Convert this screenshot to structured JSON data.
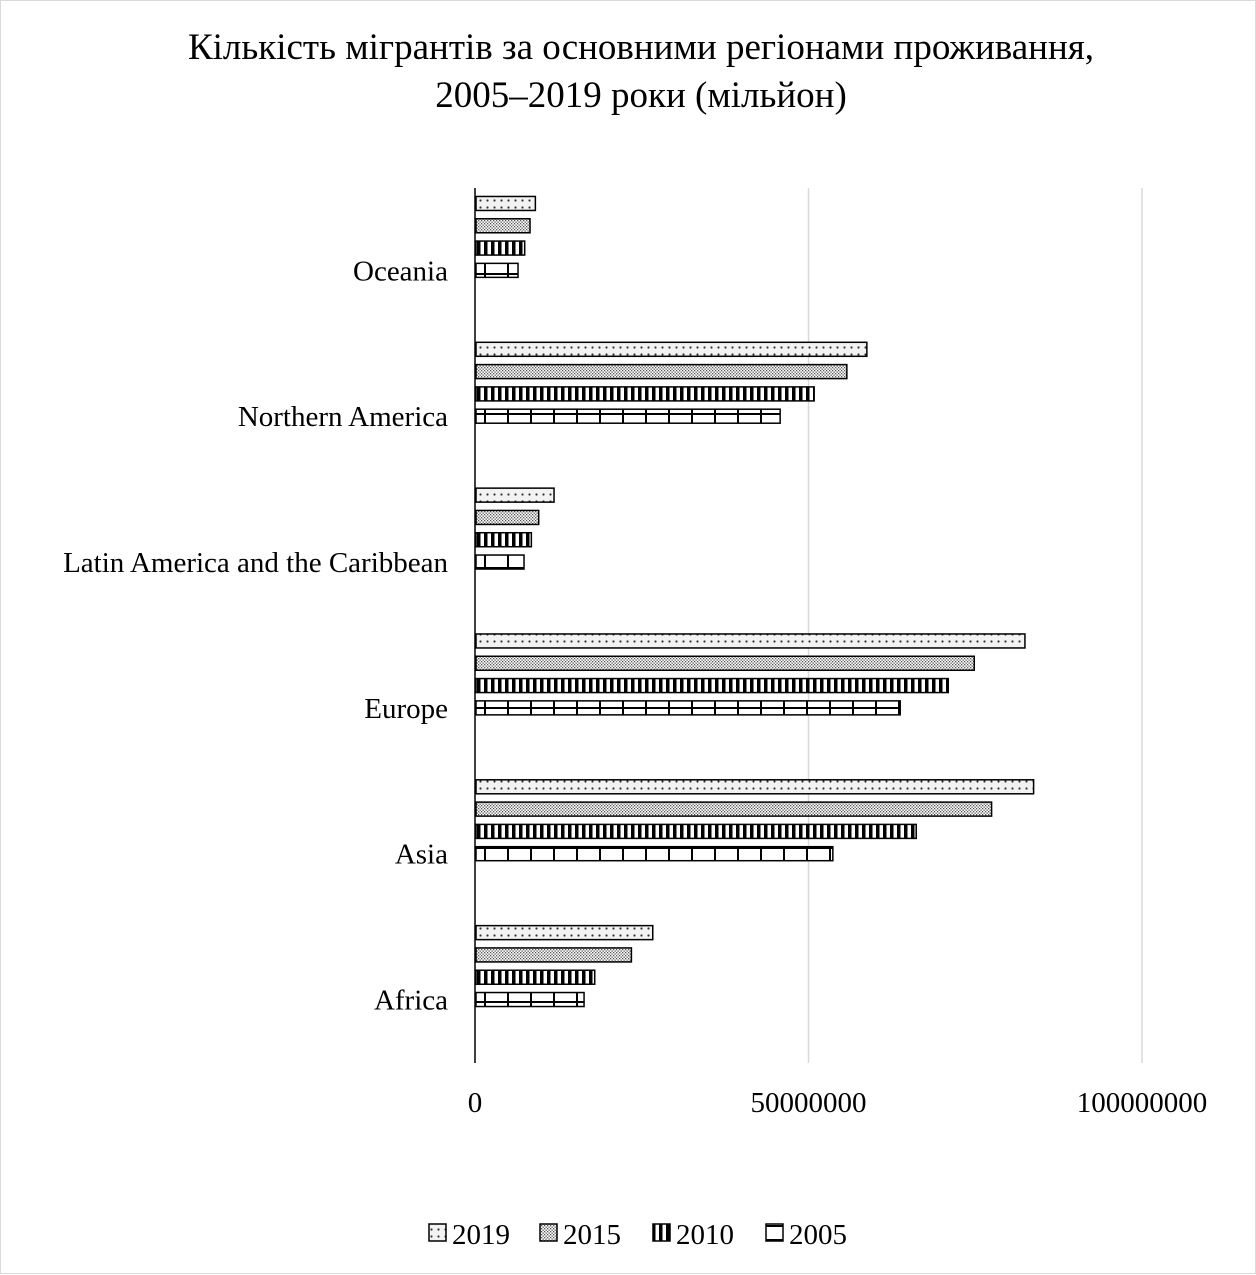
{
  "chart_data": {
    "type": "bar",
    "orientation": "horizontal",
    "title_lines": [
      "Кількість мігрантів за основними регіонами проживання,",
      "2005–2019 роки (мільйон)"
    ],
    "categories": [
      "Africa",
      "Asia",
      "Europe",
      "Latin America and the Caribbean",
      "Northern America",
      "Oceania"
    ],
    "series": [
      {
        "name": "2019",
        "pattern": "dots",
        "values": [
          26500000,
          83600000,
          82300000,
          11700000,
          58600000,
          8900000
        ]
      },
      {
        "name": "2015",
        "pattern": "dense-dots",
        "values": [
          23300000,
          77300000,
          74700000,
          9400000,
          55600000,
          8100000
        ]
      },
      {
        "name": "2010",
        "pattern": "vertical-lines",
        "values": [
          17800000,
          66000000,
          70800000,
          8300000,
          50700000,
          7300000
        ]
      },
      {
        "name": "2005",
        "pattern": "grid",
        "values": [
          16200000,
          53500000,
          63600000,
          7200000,
          45600000,
          6300000
        ]
      }
    ],
    "x_ticks": [
      0,
      50000000,
      100000000
    ],
    "x_tick_labels": [
      "0",
      "50000000",
      "100000000"
    ],
    "xlim": [
      0,
      110000000
    ],
    "grid": "vertical",
    "legend_position": "bottom",
    "colors": {
      "bar_outline": "#000000",
      "gridline": "#d9d9d9",
      "axis": "#000000",
      "border": "#d9d9d9"
    }
  }
}
